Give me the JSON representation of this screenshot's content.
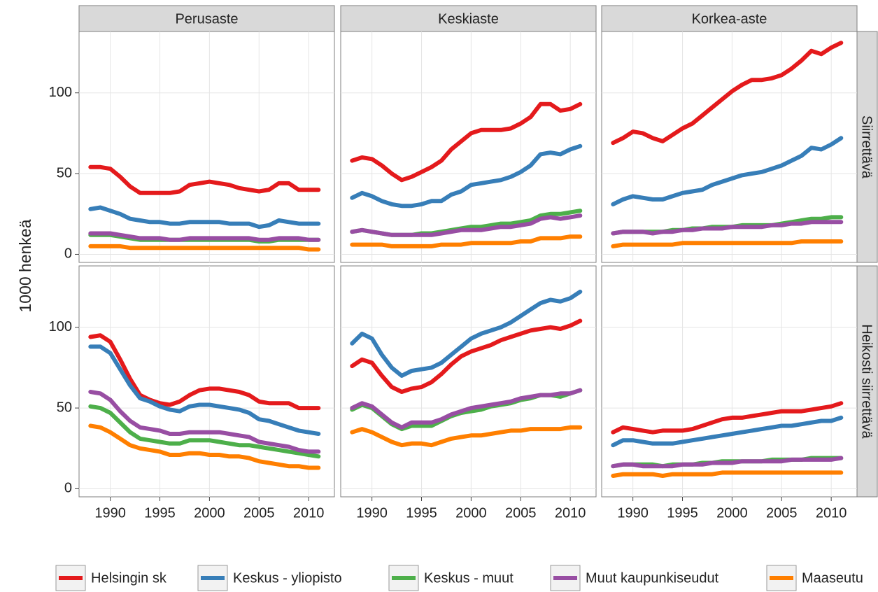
{
  "chart_data": {
    "type": "line",
    "y_label": "1000 henkeä",
    "columns": [
      "Perusaste",
      "Keskiaste",
      "Korkea-aste"
    ],
    "rows": [
      "Siirrettävä",
      "Heikosti siirrettävä"
    ],
    "x": [
      1988,
      1989,
      1990,
      1991,
      1992,
      1993,
      1994,
      1995,
      1996,
      1997,
      1998,
      1999,
      2000,
      2001,
      2002,
      2003,
      2004,
      2005,
      2006,
      2007,
      2008,
      2009,
      2010,
      2011
    ],
    "xlim": [
      1986.85,
      2012.6
    ],
    "xticks": [
      1990,
      1995,
      2000,
      2005,
      2010
    ],
    "ylim": [
      -5,
      138
    ],
    "yticks": [
      0,
      50,
      100
    ],
    "grid": true,
    "legend": "bottom",
    "series": [
      {
        "name": "Helsingin sk",
        "color": "#e41a1c"
      },
      {
        "name": "Keskus - yliopisto",
        "color": "#377eb8"
      },
      {
        "name": "Keskus - muut",
        "color": "#4daf4a"
      },
      {
        "name": "Muut kaupunkiseudut",
        "color": "#984ea3"
      },
      {
        "name": "Maaseutu",
        "color": "#ff7f00"
      }
    ],
    "facets": [
      [
        [
          [
            54,
            54,
            53,
            48,
            42,
            38,
            38,
            38,
            38,
            39,
            43,
            44,
            45,
            44,
            43,
            41,
            40,
            39,
            40,
            44,
            44,
            40,
            40,
            40
          ],
          [
            28,
            29,
            27,
            25,
            22,
            21,
            20,
            20,
            19,
            19,
            20,
            20,
            20,
            20,
            19,
            19,
            19,
            17,
            18,
            21,
            20,
            19,
            19,
            19
          ],
          [
            12,
            12,
            12,
            11,
            10,
            9,
            9,
            9,
            9,
            9,
            9,
            9,
            9,
            9,
            9,
            9,
            9,
            8,
            8,
            9,
            9,
            9,
            9,
            9
          ],
          [
            13,
            13,
            13,
            12,
            11,
            10,
            10,
            10,
            9,
            9,
            10,
            10,
            10,
            10,
            10,
            10,
            10,
            9,
            9,
            10,
            10,
            10,
            9,
            9
          ],
          [
            5,
            5,
            5,
            5,
            4,
            4,
            4,
            4,
            4,
            4,
            4,
            4,
            4,
            4,
            4,
            4,
            4,
            4,
            4,
            4,
            4,
            4,
            3,
            3
          ]
        ],
        [
          [
            58,
            60,
            59,
            55,
            50,
            46,
            48,
            51,
            54,
            58,
            65,
            70,
            75,
            77,
            77,
            77,
            78,
            81,
            85,
            93,
            93,
            89,
            90,
            93
          ],
          [
            35,
            38,
            36,
            33,
            31,
            30,
            30,
            31,
            33,
            33,
            37,
            39,
            43,
            44,
            45,
            46,
            48,
            51,
            55,
            62,
            63,
            62,
            65,
            67
          ],
          [
            14,
            15,
            14,
            13,
            12,
            12,
            12,
            13,
            13,
            14,
            15,
            16,
            17,
            17,
            18,
            19,
            19,
            20,
            21,
            24,
            25,
            25,
            26,
            27
          ],
          [
            14,
            15,
            14,
            13,
            12,
            12,
            12,
            12,
            12,
            13,
            14,
            15,
            15,
            15,
            16,
            17,
            17,
            18,
            19,
            22,
            23,
            22,
            23,
            24
          ],
          [
            6,
            6,
            6,
            6,
            5,
            5,
            5,
            5,
            5,
            6,
            6,
            6,
            7,
            7,
            7,
            7,
            7,
            8,
            8,
            10,
            10,
            10,
            11,
            11
          ]
        ],
        [
          [
            69,
            72,
            76,
            75,
            72,
            70,
            74,
            78,
            81,
            86,
            91,
            96,
            101,
            105,
            108,
            108,
            109,
            111,
            115,
            120,
            126,
            124,
            128,
            131
          ],
          [
            31,
            34,
            36,
            35,
            34,
            34,
            36,
            38,
            39,
            40,
            43,
            45,
            47,
            49,
            50,
            51,
            53,
            55,
            58,
            61,
            66,
            65,
            68,
            72
          ],
          [
            13,
            14,
            14,
            14,
            14,
            14,
            15,
            15,
            16,
            16,
            17,
            17,
            17,
            18,
            18,
            18,
            18,
            19,
            20,
            21,
            22,
            22,
            23,
            23
          ],
          [
            13,
            14,
            14,
            14,
            13,
            14,
            14,
            15,
            15,
            16,
            16,
            16,
            17,
            17,
            17,
            17,
            18,
            18,
            19,
            19,
            20,
            20,
            20,
            20
          ],
          [
            5,
            6,
            6,
            6,
            6,
            6,
            6,
            7,
            7,
            7,
            7,
            7,
            7,
            7,
            7,
            7,
            7,
            7,
            7,
            8,
            8,
            8,
            8,
            8
          ]
        ]
      ],
      [
        [
          [
            94,
            95,
            91,
            80,
            68,
            58,
            55,
            53,
            52,
            54,
            58,
            61,
            62,
            62,
            61,
            60,
            58,
            54,
            53,
            53,
            53,
            50,
            50,
            50
          ],
          [
            88,
            88,
            84,
            74,
            64,
            56,
            54,
            51,
            49,
            48,
            51,
            52,
            52,
            51,
            50,
            49,
            47,
            43,
            42,
            40,
            38,
            36,
            35,
            34
          ],
          [
            51,
            50,
            47,
            41,
            35,
            31,
            30,
            29,
            28,
            28,
            30,
            30,
            30,
            29,
            28,
            27,
            27,
            26,
            25,
            24,
            23,
            22,
            21,
            20
          ],
          [
            60,
            59,
            55,
            48,
            42,
            38,
            37,
            36,
            34,
            34,
            35,
            35,
            35,
            35,
            34,
            33,
            32,
            29,
            28,
            27,
            26,
            24,
            23,
            23
          ],
          [
            39,
            38,
            35,
            31,
            27,
            25,
            24,
            23,
            21,
            21,
            22,
            22,
            21,
            21,
            20,
            20,
            19,
            17,
            16,
            15,
            14,
            14,
            13,
            13
          ]
        ],
        [
          [
            76,
            80,
            78,
            70,
            63,
            60,
            62,
            63,
            66,
            71,
            77,
            82,
            85,
            87,
            89,
            92,
            94,
            96,
            98,
            99,
            100,
            99,
            101,
            104
          ],
          [
            90,
            96,
            93,
            83,
            75,
            70,
            73,
            74,
            75,
            78,
            83,
            88,
            93,
            96,
            98,
            100,
            103,
            107,
            111,
            115,
            117,
            116,
            118,
            122
          ],
          [
            49,
            52,
            50,
            45,
            40,
            37,
            39,
            39,
            39,
            42,
            45,
            47,
            48,
            49,
            51,
            52,
            53,
            55,
            56,
            58,
            58,
            57,
            59,
            61
          ],
          [
            50,
            53,
            51,
            46,
            41,
            38,
            41,
            41,
            41,
            43,
            46,
            48,
            50,
            51,
            52,
            53,
            54,
            56,
            57,
            58,
            58,
            59,
            59,
            61
          ],
          [
            35,
            37,
            35,
            32,
            29,
            27,
            28,
            28,
            27,
            29,
            31,
            32,
            33,
            33,
            34,
            35,
            36,
            36,
            37,
            37,
            37,
            37,
            38,
            38
          ]
        ],
        [
          [
            35,
            38,
            37,
            36,
            35,
            36,
            36,
            36,
            37,
            39,
            41,
            43,
            44,
            44,
            45,
            46,
            47,
            48,
            48,
            48,
            49,
            50,
            51,
            53
          ],
          [
            27,
            30,
            30,
            29,
            28,
            28,
            28,
            29,
            30,
            31,
            32,
            33,
            34,
            35,
            36,
            37,
            38,
            39,
            39,
            40,
            41,
            42,
            42,
            44
          ],
          [
            14,
            15,
            15,
            15,
            15,
            14,
            15,
            15,
            15,
            16,
            16,
            17,
            17,
            17,
            17,
            17,
            18,
            18,
            18,
            18,
            19,
            19,
            19,
            19
          ],
          [
            14,
            15,
            15,
            14,
            14,
            14,
            14,
            15,
            15,
            15,
            16,
            16,
            16,
            17,
            17,
            17,
            17,
            17,
            18,
            18,
            18,
            18,
            18,
            19
          ],
          [
            8,
            9,
            9,
            9,
            9,
            8,
            9,
            9,
            9,
            9,
            9,
            10,
            10,
            10,
            10,
            10,
            10,
            10,
            10,
            10,
            10,
            10,
            10,
            10
          ]
        ]
      ]
    ]
  }
}
